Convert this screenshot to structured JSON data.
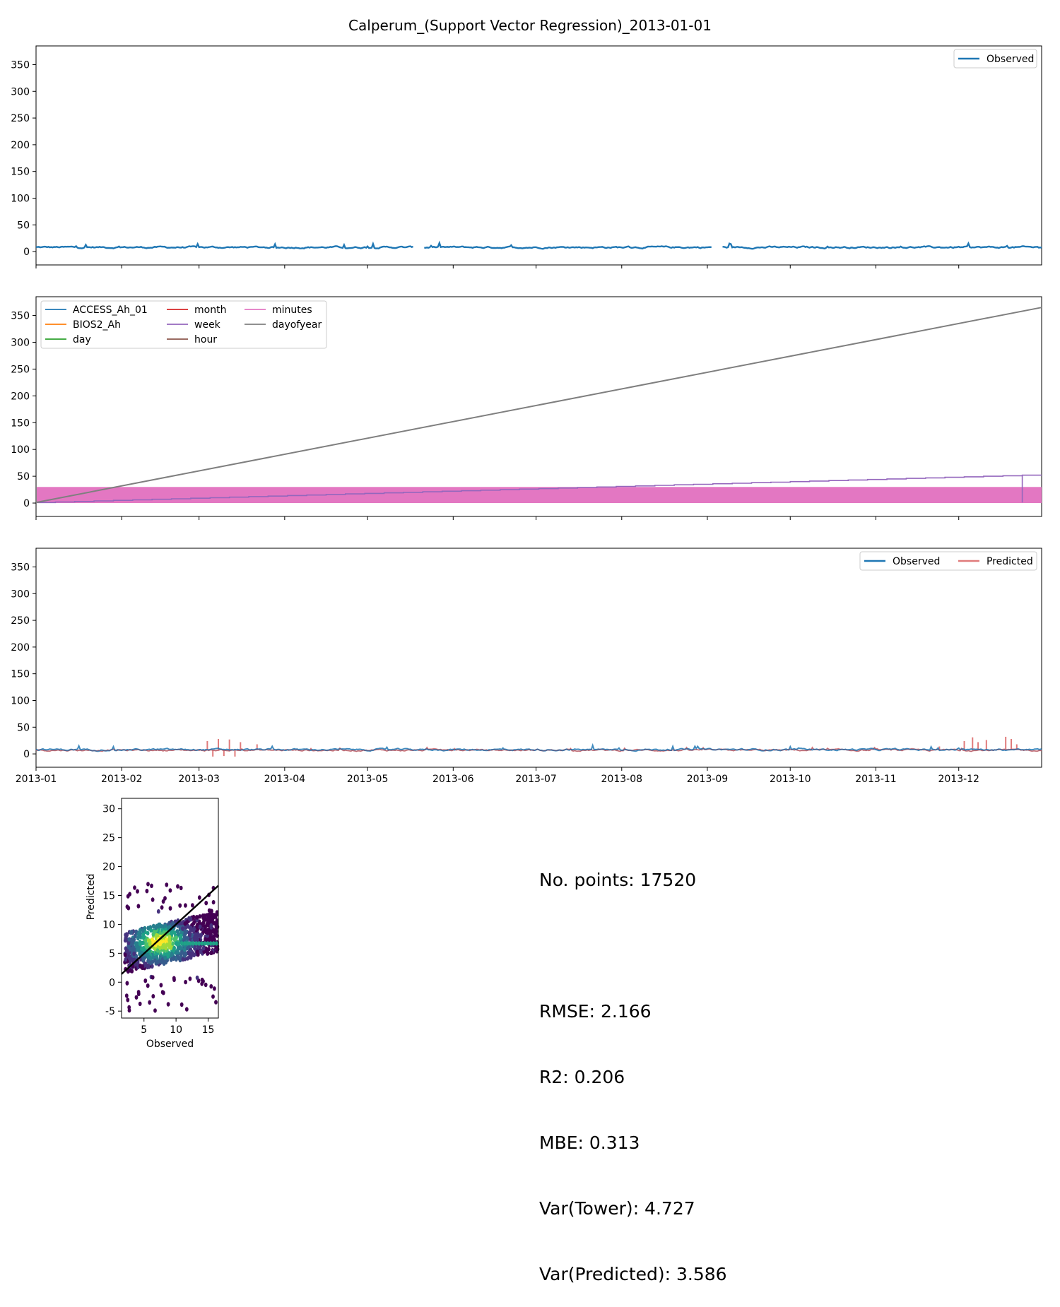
{
  "figure": {
    "title": "Calperum_(Support Vector Regression)_2013-01-01"
  },
  "colors": {
    "observed": "#1f77b4",
    "predicted": "#e07b7b",
    "ACCESS_Ah_01": "#1f77b4",
    "BIOS2_Ah": "#ff7f0e",
    "day": "#2ca02c",
    "month": "#d62728",
    "week": "#9467bd",
    "hour": "#8c564b",
    "minutes": "#e377c2",
    "dayofyear": "#7f7f7f",
    "regression_line": "#000000"
  },
  "stats": {
    "n_points": "No. points: 17520",
    "rmse": "RMSE: 2.166",
    "r2": "R2: 0.206",
    "mbe": "MBE: 0.313",
    "var_tower": "Var(Tower): 4.727",
    "var_predicted": "Var(Predicted): 3.586"
  },
  "chart_data": [
    {
      "type": "line",
      "panel": "observed",
      "x_range": [
        "2013-01-01",
        "2013-12-31"
      ],
      "ylim": [
        -25,
        385
      ],
      "yticks": [
        0,
        50,
        100,
        150,
        200,
        250,
        300,
        350
      ],
      "legend": "top-right",
      "series": [
        {
          "name": "Observed",
          "mean": 8,
          "min": 3,
          "max": 16,
          "gaps": [
            [
              "2013-05-18",
              "2013-05-21"
            ],
            [
              "2013-09-03",
              "2013-09-06"
            ]
          ]
        }
      ]
    },
    {
      "type": "line",
      "panel": "drivers",
      "x_range": [
        "2013-01-01",
        "2013-12-31"
      ],
      "ylim": [
        -25,
        385
      ],
      "yticks": [
        0,
        50,
        100,
        150,
        200,
        250,
        300,
        350
      ],
      "legend": "top-left",
      "legend_columns": 3,
      "series": [
        {
          "name": "ACCESS_Ah_01",
          "values": [
            0
          ]
        },
        {
          "name": "BIOS2_Ah",
          "values": [
            0
          ]
        },
        {
          "name": "day",
          "values": [
            1,
            31
          ]
        },
        {
          "name": "month",
          "values": [
            1,
            12
          ]
        },
        {
          "name": "week",
          "values": [
            1,
            52
          ]
        },
        {
          "name": "hour",
          "values": [
            0,
            23
          ]
        },
        {
          "name": "minutes",
          "values": [
            0,
            30
          ]
        },
        {
          "name": "dayofyear",
          "values": [
            1,
            365
          ]
        }
      ]
    },
    {
      "type": "line",
      "panel": "observed_vs_predicted",
      "x_range": [
        "2013-01-01",
        "2013-12-31"
      ],
      "ylim": [
        -25,
        385
      ],
      "yticks": [
        0,
        50,
        100,
        150,
        200,
        250,
        300,
        350
      ],
      "xticks": [
        "2013-01",
        "2013-02",
        "2013-03",
        "2013-04",
        "2013-05",
        "2013-06",
        "2013-07",
        "2013-08",
        "2013-09",
        "2013-10",
        "2013-11",
        "2013-12"
      ],
      "legend": "top-right",
      "series": [
        {
          "name": "Observed",
          "mean": 8,
          "min": 3,
          "max": 16
        },
        {
          "name": "Predicted",
          "mean": 7,
          "min": -5,
          "max": 32,
          "spikes": [
            [
              "2013-03-08",
              28
            ],
            [
              "2013-03-12",
              -5
            ],
            [
              "2013-12-08",
              32
            ],
            [
              "2013-12-20",
              32
            ]
          ]
        }
      ]
    },
    {
      "type": "scatter",
      "panel": "hexbin",
      "xlabel": "Observed",
      "ylabel": "Predicted",
      "xlim": [
        1.5,
        16.6
      ],
      "ylim": [
        -6.2,
        31.8
      ],
      "xticks": [
        5,
        10,
        15
      ],
      "yticks": [
        -5,
        0,
        5,
        10,
        15,
        20,
        25,
        30
      ],
      "regression_line": [
        [
          1.5,
          1.4
        ],
        [
          16.6,
          16.7
        ]
      ],
      "density_center": [
        7.5,
        7
      ]
    }
  ]
}
